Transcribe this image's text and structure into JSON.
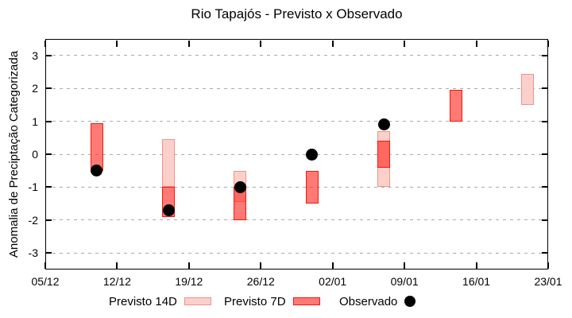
{
  "chart_data": {
    "type": "candlestick",
    "title": "Rio Tapajós - Previsto x Observado",
    "ylabel": "Anomalia de Preciptação Categorizada",
    "xlabel": "",
    "x_tick_labels": [
      "05/12",
      "12/12",
      "19/12",
      "26/12",
      "02/01",
      "09/01",
      "16/01",
      "23/01"
    ],
    "x_tick_days": [
      0,
      7,
      14,
      21,
      28,
      35,
      42,
      49
    ],
    "xlim_days": [
      0,
      49
    ],
    "y_ticks": [
      3,
      2,
      1,
      0,
      -1,
      -2,
      -3
    ],
    "ylim": [
      -3.5,
      3.5
    ],
    "grid": "horizontal-dashed",
    "legend_position": "below-plot",
    "series": [
      {
        "name": "Previsto 14D",
        "type": "range-bar",
        "fill": "#fbd0cb",
        "border": "#f0928a"
      },
      {
        "name": "Previsto 7D",
        "type": "range-bar",
        "fill": "rgba(255,40,30,0.62)",
        "border": "#f2180f"
      },
      {
        "name": "Observado",
        "type": "point",
        "color": "#000000"
      }
    ],
    "groups": [
      {
        "date": "10/12",
        "day": 5,
        "previsto14d": null,
        "previsto7d": [
          -0.5,
          0.95
        ],
        "observado": -0.5
      },
      {
        "date": "17/12",
        "day": 12,
        "previsto14d": [
          -1.0,
          0.45
        ],
        "previsto7d": [
          -1.9,
          -1.0
        ],
        "observado": -1.7
      },
      {
        "date": "24/12",
        "day": 19,
        "previsto14d": [
          -1.45,
          -0.5
        ],
        "previsto7d": [
          -2.0,
          -1.0
        ],
        "observado": -1.0
      },
      {
        "date": "31/12",
        "day": 26,
        "previsto14d": null,
        "previsto7d": [
          -1.5,
          -0.5
        ],
        "observado": 0.0
      },
      {
        "date": "07/01",
        "day": 33,
        "previsto14d": [
          -1.0,
          0.7
        ],
        "previsto7d": [
          -0.4,
          0.4
        ],
        "observado": 0.9
      },
      {
        "date": "14/01",
        "day": 40,
        "previsto14d": null,
        "previsto7d": [
          1.0,
          1.95
        ],
        "observado": null
      },
      {
        "date": "21/01",
        "day": 47,
        "previsto14d": [
          1.5,
          2.45
        ],
        "previsto7d": null,
        "observado": null
      }
    ],
    "colors": {
      "axis": "#000000",
      "grid": "#aaaaaa",
      "background": "#ffffff",
      "text": "#000000"
    }
  }
}
